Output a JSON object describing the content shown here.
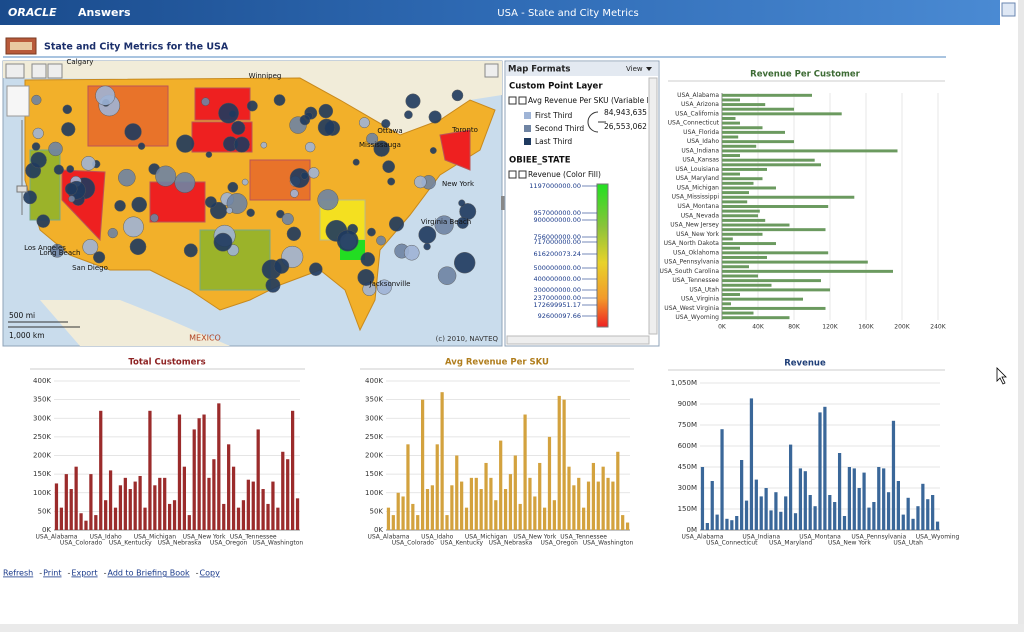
{
  "window": {
    "brand": "ORACLE",
    "app": "Answers",
    "title": "USA - State and City Metrics"
  },
  "page_title": "State and City Metrics for the USA",
  "map": {
    "labels": [
      "Calgary",
      "Winnipeg",
      "Ottawa",
      "Mississauga",
      "Toronto",
      "New York",
      "Virginia Beach",
      "Jacksonville",
      "Los Angeles",
      "Long Beach",
      "San Diego",
      "MEXICO"
    ],
    "scale_miles": "500 mi",
    "scale_km": "1,000 km",
    "copyright": "(c) 2010, NAVTEQ"
  },
  "map_formats": {
    "title": "Map Formats",
    "view": "View",
    "point_layer": "Custom Point Layer",
    "point_measure": "Avg Revenue Per SKU (Variable Mar",
    "point_classes": [
      {
        "name": "First Third",
        "color": "#9fb4d6"
      },
      {
        "name": "Second Third",
        "color": "#6f84a3"
      },
      {
        "name": "Last Third",
        "color": "#1f3a5f"
      }
    ],
    "point_breaks": [
      "84,943,635",
      "26,553,062"
    ],
    "state_layer": "OBIEE_STATE",
    "state_measure": "Revenue (Color Fill)",
    "fill_labels": [
      "1197000000.00",
      "957000000.00",
      "900000000.00",
      "756000000.00",
      "717000000.00",
      "616200073.24",
      "500000000.00",
      "400000000.00",
      "300000000.00",
      "237000000.00",
      "172699951.17",
      "92600097.66"
    ]
  },
  "chart_data": [
    {
      "type": "hbar",
      "title": "Revenue Per Customer",
      "title_color": "#3d6b34",
      "color": "#6b9a5f",
      "categories": [
        "USA_Alabama",
        null,
        "USA_Arizona",
        null,
        "USA_California",
        null,
        "USA_Connecticut",
        null,
        "USA_Florida",
        null,
        "USA_Idaho",
        null,
        "USA_Indiana",
        null,
        "USA_Kansas",
        null,
        "USA_Louisiana",
        null,
        "USA_Maryland",
        null,
        "USA_Michigan",
        null,
        "USA_Mississippi",
        null,
        "USA_Montana",
        null,
        "USA_Nevada",
        null,
        "USA_New Jersey",
        null,
        "USA_New York",
        null,
        "USA_North Dakota",
        null,
        "USA_Oklahoma",
        null,
        "USA_Pennsylvania",
        null,
        "USA_South Carolina",
        null,
        "USA_Tennessee",
        null,
        "USA_Utah",
        null,
        "USA_Virginia",
        null,
        "USA_West Virginia",
        null,
        "USA_Wyoming"
      ],
      "values": [
        100000,
        20000,
        48000,
        80000,
        133000,
        15000,
        20000,
        45000,
        70000,
        18000,
        80000,
        38000,
        195000,
        20000,
        103000,
        110000,
        50000,
        20000,
        45000,
        35000,
        60000,
        30000,
        147000,
        28000,
        118000,
        42000,
        40000,
        48000,
        75000,
        115000,
        45000,
        12000,
        60000,
        20000,
        118000,
        50000,
        162000,
        30000,
        190000,
        40000,
        110000,
        55000,
        120000,
        20000,
        90000,
        10000,
        115000,
        35000,
        75000
      ],
      "xlim": [
        0,
        240000
      ],
      "xticks": [
        {
          "value": 0,
          "label": "0K"
        },
        {
          "value": 40000,
          "label": "40K"
        },
        {
          "value": 80000,
          "label": "80K"
        },
        {
          "value": 120000,
          "label": "120K"
        },
        {
          "value": 160000,
          "label": "160K"
        },
        {
          "value": 200000,
          "label": "200K"
        },
        {
          "value": 240000,
          "label": "240K"
        }
      ],
      "grid": true
    },
    {
      "type": "bar",
      "title": "Total Customers",
      "title_color": "#8e2323",
      "color": "#9b2b2b",
      "categories": [
        "USA_Alabama",
        null,
        null,
        null,
        null,
        "USA_Colorado",
        null,
        null,
        null,
        null,
        "USA_Idaho",
        null,
        null,
        null,
        null,
        "USA_Kentucky",
        null,
        null,
        null,
        null,
        "USA_Michigan",
        null,
        null,
        null,
        null,
        "USA_Nebraska",
        null,
        null,
        null,
        null,
        "USA_New York",
        null,
        null,
        null,
        null,
        "USA_Oregon",
        null,
        null,
        null,
        null,
        "USA_Tennessee",
        null,
        null,
        null,
        null,
        "USA_Washington",
        null,
        null,
        null,
        null
      ],
      "values": [
        125000,
        60000,
        150000,
        110000,
        170000,
        45000,
        25000,
        150000,
        40000,
        320000,
        80000,
        160000,
        60000,
        120000,
        140000,
        110000,
        130000,
        145000,
        60000,
        320000,
        120000,
        140000,
        140000,
        70000,
        80000,
        310000,
        170000,
        40000,
        270000,
        300000,
        310000,
        140000,
        190000,
        340000,
        70000,
        230000,
        170000,
        60000,
        80000,
        135000,
        130000,
        270000,
        110000,
        70000,
        130000,
        60000,
        210000,
        190000,
        320000,
        85000
      ],
      "ylim": [
        0,
        400000
      ],
      "yticks": [
        {
          "value": 0,
          "label": "0K"
        },
        {
          "value": 50000,
          "label": "50K"
        },
        {
          "value": 100000,
          "label": "100K"
        },
        {
          "value": 150000,
          "label": "150K"
        },
        {
          "value": 200000,
          "label": "200K"
        },
        {
          "value": 250000,
          "label": "250K"
        },
        {
          "value": 300000,
          "label": "300K"
        },
        {
          "value": 350000,
          "label": "350K"
        },
        {
          "value": 400000,
          "label": "400K"
        }
      ],
      "grid": true
    },
    {
      "type": "bar",
      "title": "Avg Revenue Per SKU",
      "title_color": "#b07d1c",
      "color": "#d3a23e",
      "categories": [
        "USA_Alabama",
        null,
        null,
        null,
        null,
        "USA_Colorado",
        null,
        null,
        null,
        null,
        "USA_Idaho",
        null,
        null,
        null,
        null,
        "USA_Kentucky",
        null,
        null,
        null,
        null,
        "USA_Michigan",
        null,
        null,
        null,
        null,
        "USA_Nebraska",
        null,
        null,
        null,
        null,
        "USA_New York",
        null,
        null,
        null,
        null,
        "USA_Oregon",
        null,
        null,
        null,
        null,
        "USA_Tennessee",
        null,
        null,
        null,
        null,
        "USA_Washington",
        null,
        null,
        null,
        null
      ],
      "values": [
        60000,
        40000,
        100000,
        90000,
        230000,
        70000,
        40000,
        350000,
        110000,
        120000,
        230000,
        370000,
        40000,
        120000,
        200000,
        130000,
        60000,
        140000,
        140000,
        110000,
        180000,
        140000,
        80000,
        240000,
        110000,
        150000,
        200000,
        70000,
        310000,
        140000,
        90000,
        180000,
        60000,
        250000,
        80000,
        360000,
        350000,
        170000,
        120000,
        140000,
        60000,
        130000,
        180000,
        130000,
        170000,
        140000,
        130000,
        210000,
        40000,
        20000
      ],
      "ylim": [
        0,
        400000
      ],
      "yticks": [
        {
          "value": 0,
          "label": "0K"
        },
        {
          "value": 50000,
          "label": "50K"
        },
        {
          "value": 100000,
          "label": "100K"
        },
        {
          "value": 150000,
          "label": "150K"
        },
        {
          "value": 200000,
          "label": "200K"
        },
        {
          "value": 250000,
          "label": "250K"
        },
        {
          "value": 300000,
          "label": "300K"
        },
        {
          "value": 350000,
          "label": "350K"
        },
        {
          "value": 400000,
          "label": "400K"
        }
      ],
      "grid": true
    },
    {
      "type": "bar",
      "title": "Revenue",
      "title_color": "#1f3f78",
      "color": "#3a6799",
      "categories": [
        "USA_Alabama",
        null,
        null,
        null,
        null,
        null,
        "USA_Connecticut",
        null,
        null,
        null,
        null,
        null,
        "USA_Indiana",
        null,
        null,
        null,
        null,
        null,
        "USA_Maryland",
        null,
        null,
        null,
        null,
        null,
        "USA_Montana",
        null,
        null,
        null,
        null,
        null,
        "USA_New York",
        null,
        null,
        null,
        null,
        null,
        "USA_Pennsylvania",
        null,
        null,
        null,
        null,
        null,
        "USA_Utah",
        null,
        null,
        null,
        null,
        null,
        "USA_Wyoming"
      ],
      "values": [
        450000000,
        50000000,
        350000000,
        110000000,
        720000000,
        80000000,
        70000000,
        100000000,
        500000000,
        210000000,
        940000000,
        360000000,
        240000000,
        300000000,
        140000000,
        270000000,
        130000000,
        240000000,
        610000000,
        120000000,
        440000000,
        420000000,
        250000000,
        170000000,
        840000000,
        880000000,
        250000000,
        200000000,
        550000000,
        100000000,
        450000000,
        440000000,
        300000000,
        410000000,
        160000000,
        200000000,
        450000000,
        440000000,
        270000000,
        780000000,
        350000000,
        110000000,
        230000000,
        80000000,
        170000000,
        330000000,
        220000000,
        250000000,
        60000000
      ],
      "ylim": [
        0,
        1050000000
      ],
      "yticks": [
        {
          "value": 0,
          "label": "0M"
        },
        {
          "value": 150000000,
          "label": "150M"
        },
        {
          "value": 300000000,
          "label": "300M"
        },
        {
          "value": 450000000,
          "label": "450M"
        },
        {
          "value": 600000000,
          "label": "600M"
        },
        {
          "value": 750000000,
          "label": "750M"
        },
        {
          "value": 900000000,
          "label": "900M"
        },
        {
          "value": 1050000000,
          "label": "1,050M"
        }
      ],
      "grid": true
    }
  ],
  "links": [
    "Refresh",
    "Print",
    "Export",
    "Add to Briefing Book",
    "Copy"
  ],
  "separator": "-"
}
